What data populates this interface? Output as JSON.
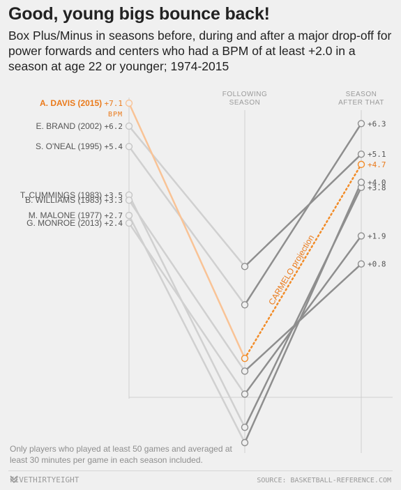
{
  "title": "Good, young bigs bounce back!",
  "subtitle": "Box Plus/Minus in seasons before, during and after a major drop-off for power forwards and centers who had a BPM of at least +2.0 in a season at age 22 or younger; 1974-2015",
  "footnote": "Only players who played at least 50 games and averaged at least 30 minutes per game in each season included.",
  "brand": "FIVETHIRTYEIGHT",
  "source": "SOURCE: BASKETBALL-REFERENCE.COM",
  "colors": {
    "highlight": "#f28c28",
    "highlight_light": "#f9c396",
    "first_segment": "#d0d0d0",
    "later_segments": "#8e8e8e",
    "axis": "#cfcfcf",
    "label": "#555555",
    "highlight_label": "#ea7a1b"
  },
  "chart_data": {
    "type": "line",
    "x": [
      "",
      "FOLLOWING SEASON",
      "SEASON AFTER THAT"
    ],
    "column_headers": [
      [
        "FOLLOWING",
        "SEASON"
      ],
      [
        "SEASON",
        "AFTER THAT"
      ]
    ],
    "unit_label": "BPM",
    "ylim": [
      -6.2,
      7.1
    ],
    "grid": false,
    "series": [
      {
        "name": "A. DAVIS (2015)",
        "values": [
          7.1,
          -2.9,
          4.7
        ],
        "labels": [
          "+7.1",
          null,
          "+4.7"
        ],
        "highlight": true,
        "projection_label": "CARMELO projection"
      },
      {
        "name": "E. BRAND (2002)",
        "values": [
          6.2,
          0.7,
          5.1
        ],
        "labels": [
          "+6.2",
          null,
          "+5.1"
        ]
      },
      {
        "name": "S. O'NEAL (1995)",
        "values": [
          5.4,
          -0.8,
          6.3
        ],
        "labels": [
          "+5.4",
          null,
          "+6.3"
        ]
      },
      {
        "name": "T. CUMMINGS (1983)",
        "values": [
          3.5,
          -5.6,
          3.8
        ],
        "labels": [
          "+3.5",
          null,
          "+3.8"
        ]
      },
      {
        "name": "B. WILLIAMS (1983)",
        "values": [
          3.3,
          -3.4,
          0.8
        ],
        "labels": [
          "+3.3",
          null,
          "+0.8"
        ]
      },
      {
        "name": "M. MALONE (1977)",
        "values": [
          2.7,
          -6.2,
          4.0
        ],
        "labels": [
          "+2.7",
          null,
          "+4.0"
        ]
      },
      {
        "name": "G. MONROE (2013)",
        "values": [
          2.4,
          -4.3,
          1.9
        ],
        "labels": [
          "+2.4",
          null,
          "+1.9"
        ]
      }
    ]
  }
}
